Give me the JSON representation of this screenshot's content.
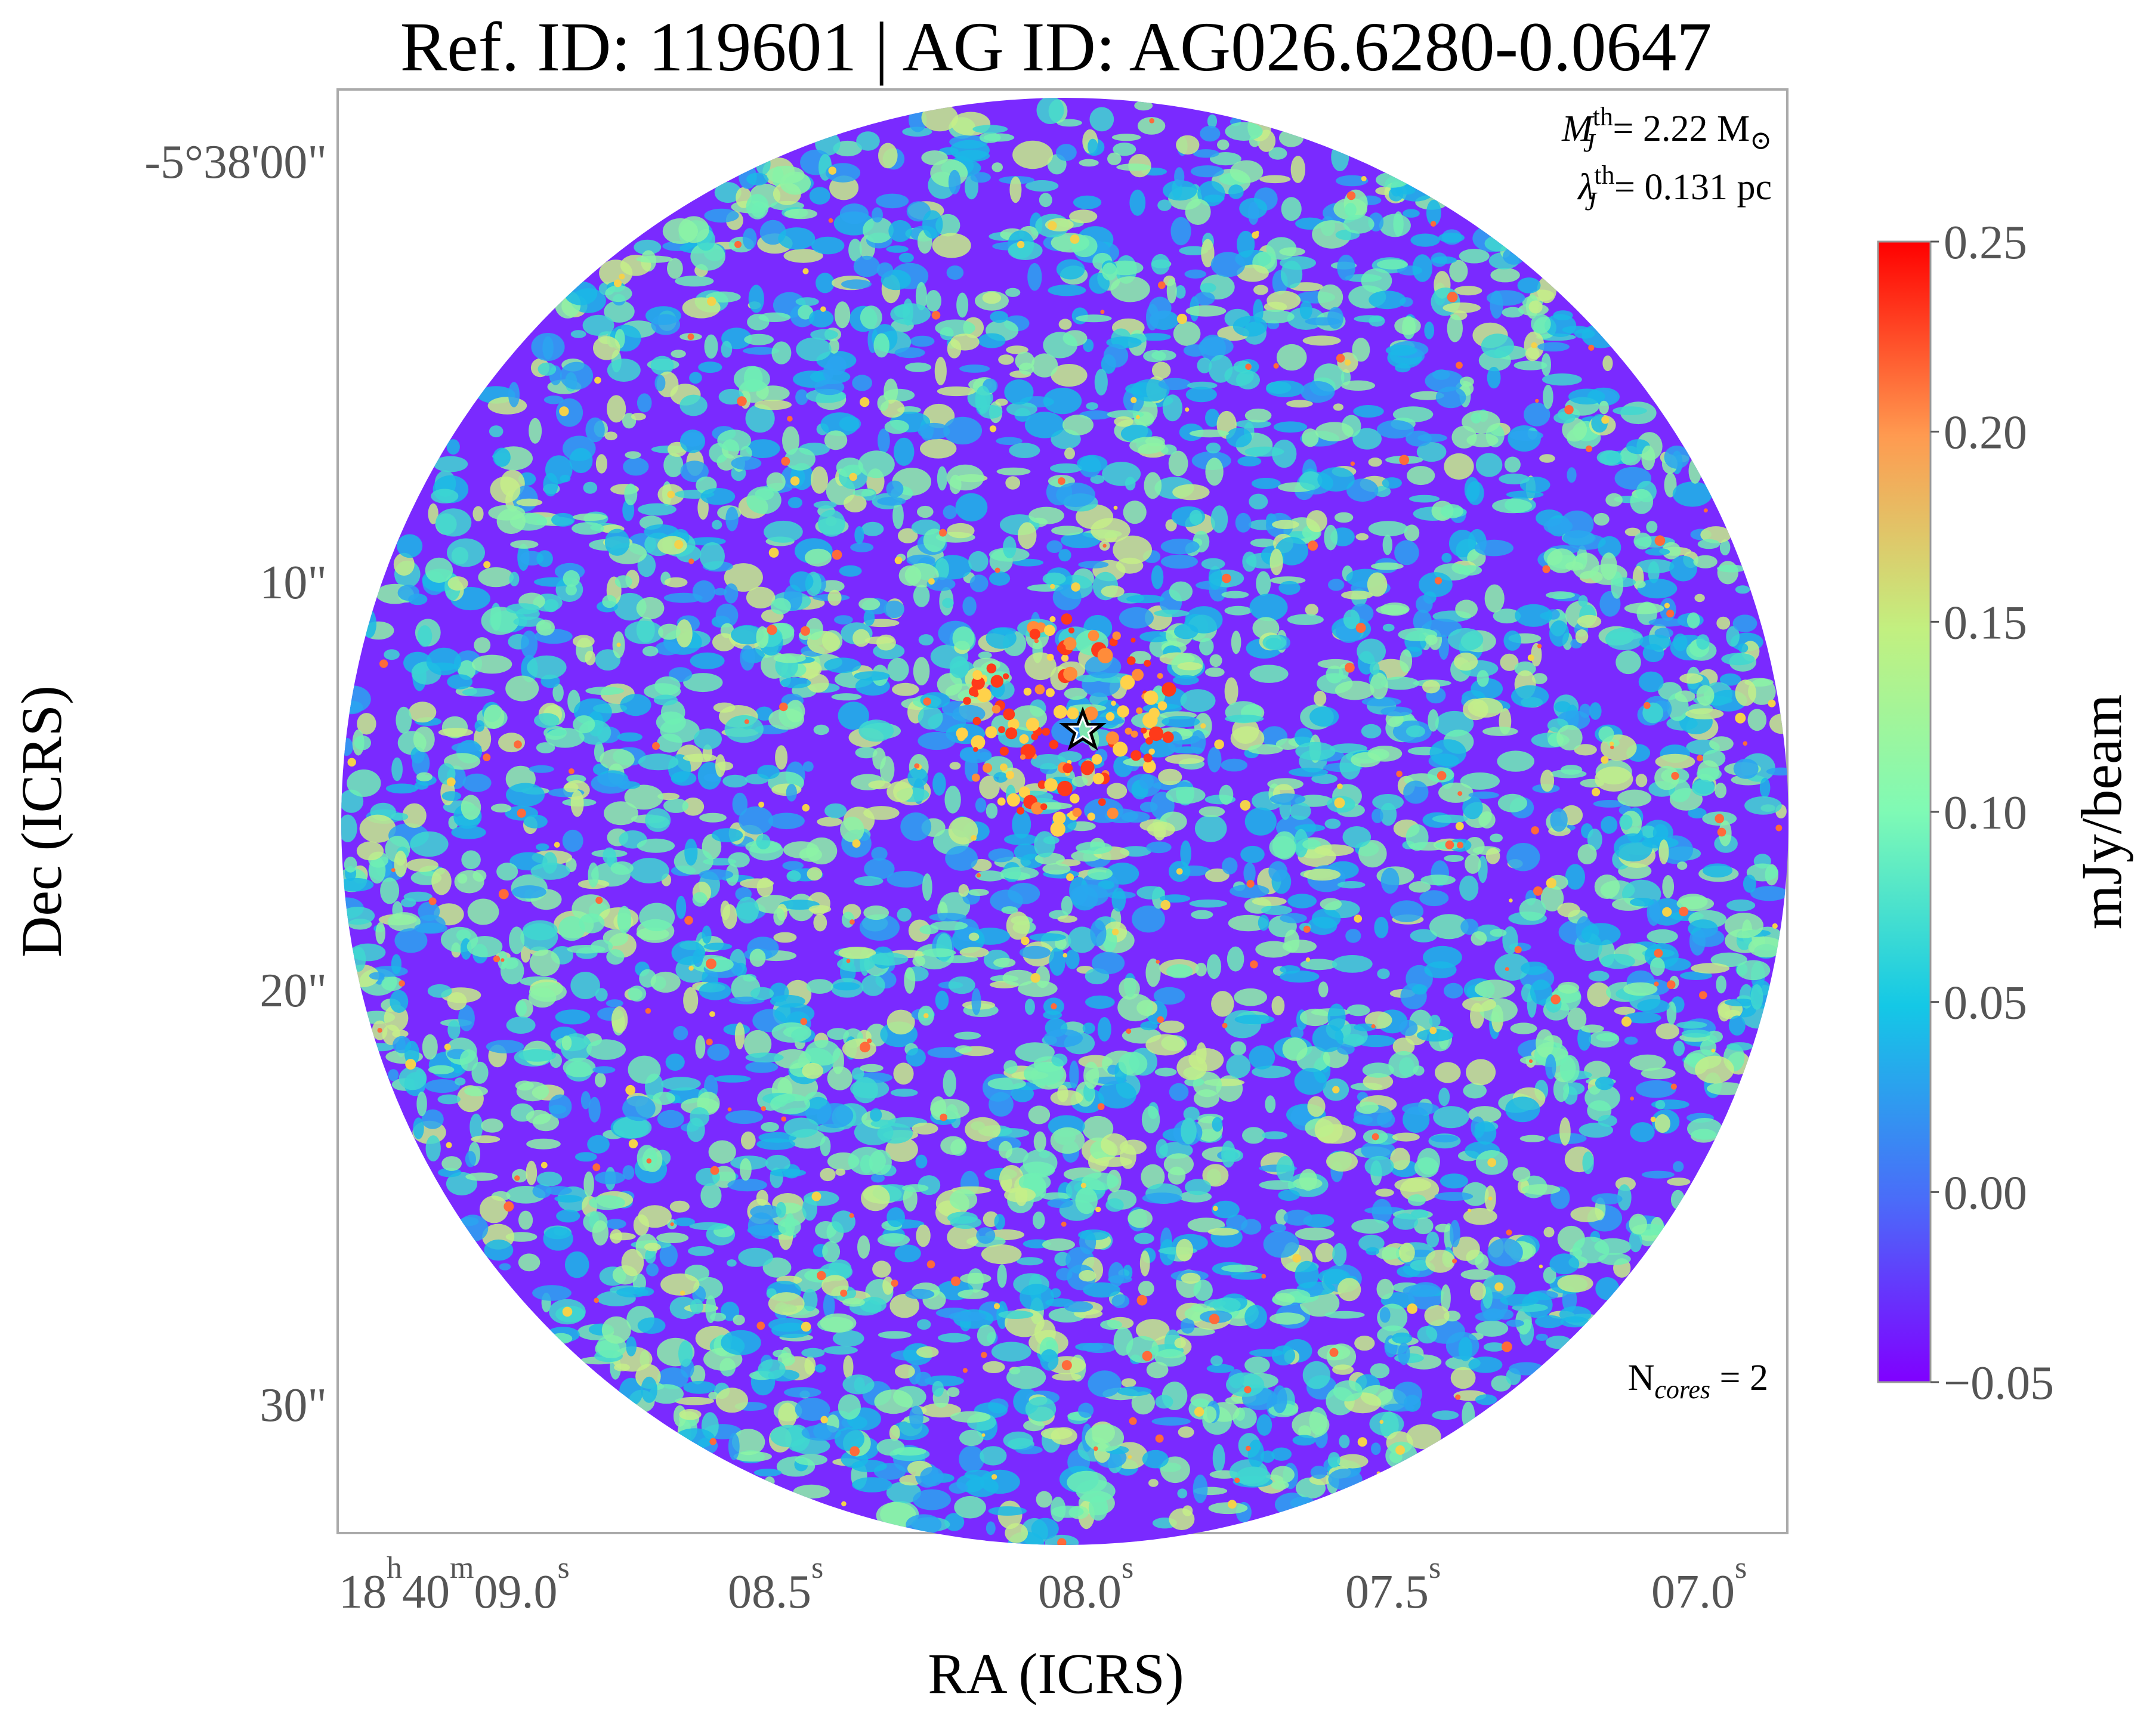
{
  "chart_data": {
    "type": "heatmap",
    "title": "Ref. ID: 119601 | AG ID: AG026.6280-0.0647",
    "xlabel": "RA (ICRS)",
    "ylabel": "Dec (ICRS)",
    "x_ticks": [
      {
        "main": "18",
        "sup_h": "h",
        "mid": "40",
        "sup_m": "m",
        "tail": "09.0",
        "sup_s": "s"
      },
      {
        "main": "08.5",
        "sup_s": "s"
      },
      {
        "main": "08.0",
        "sup_s": "s"
      },
      {
        "main": "07.5",
        "sup_s": "s"
      },
      {
        "main": "07.0",
        "sup_s": "s"
      }
    ],
    "y_ticks": [
      "-5°38'00\"",
      "10\"",
      "20\"",
      "30\""
    ],
    "annotations": {
      "mass": {
        "symbol": "M",
        "sub": "J",
        "sup": "th",
        "text": "= 2.22 M",
        "unit_symbol": "⊙"
      },
      "length": {
        "symbol": "λ",
        "sub": "J",
        "sup": "th",
        "text": "= 0.131 pc"
      },
      "cores": {
        "prefix": "N",
        "sub": "cores",
        "text": " = 2"
      }
    },
    "colorbar": {
      "label": "mJy/beam",
      "min": -0.05,
      "max": 0.25,
      "ticks": [
        "0.25",
        "0.20",
        "0.15",
        "0.10",
        "0.05",
        "0.00",
        "−0.05"
      ],
      "tick_values": [
        0.25,
        0.2,
        0.15,
        0.1,
        0.05,
        0.0,
        -0.05
      ],
      "colormap": "rainbow"
    },
    "markers": [
      {
        "type": "star",
        "label": "core"
      }
    ]
  }
}
